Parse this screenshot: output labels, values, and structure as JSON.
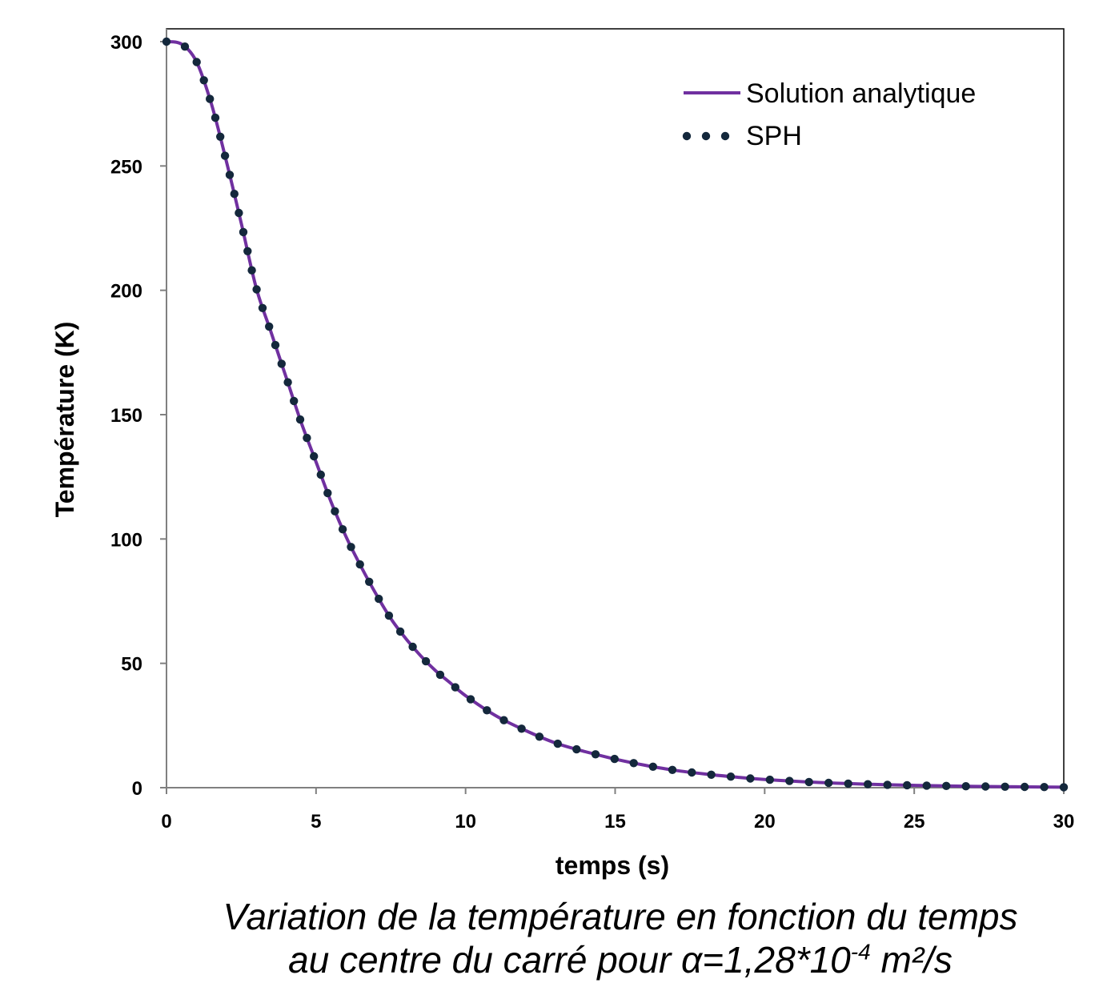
{
  "chart_data": {
    "type": "line",
    "title": "",
    "xlabel": "temps (s)",
    "ylabel": "Température (K)",
    "xlim": [
      0,
      30
    ],
    "ylim": [
      0,
      300
    ],
    "x_ticks": [
      "0",
      "5",
      "10",
      "15",
      "20",
      "25",
      "30"
    ],
    "y_ticks": [
      "0",
      "50",
      "100",
      "150",
      "200",
      "250",
      "300"
    ],
    "grid": false,
    "legend_position": "top-right",
    "colors": {
      "analytic": "#7030A0",
      "sph": "#14283C"
    },
    "series": [
      {
        "name": "Solution analytique",
        "style": "solid-line",
        "x": [
          0,
          0.5,
          1,
          1.5,
          2,
          2.5,
          3,
          3.5,
          4,
          4.5,
          5,
          5.5,
          6,
          6.5,
          7,
          7.5,
          8,
          8.5,
          9,
          9.5,
          10,
          11,
          12,
          13,
          14,
          15,
          16,
          17,
          18,
          19,
          20,
          22,
          24,
          26,
          28,
          30
        ],
        "y": [
          300,
          299,
          292,
          275,
          252,
          227,
          201,
          183,
          165,
          147,
          131,
          115,
          101,
          89,
          78,
          68,
          60,
          53,
          47,
          42,
          37,
          29,
          23,
          18,
          14.5,
          11.5,
          9,
          7,
          5.5,
          4.3,
          3.3,
          2,
          1.2,
          0.7,
          0.4,
          0.2
        ]
      },
      {
        "name": "SPH",
        "style": "dotted",
        "x": [
          0,
          0.5,
          1,
          1.5,
          2,
          2.5,
          3,
          3.5,
          4,
          4.5,
          5,
          5.5,
          6,
          6.5,
          7,
          7.5,
          8,
          8.5,
          9,
          9.5,
          10,
          11,
          12,
          13,
          14,
          15,
          16,
          17,
          18,
          19,
          20,
          22,
          24,
          26,
          28,
          30
        ],
        "y": [
          300,
          299,
          292,
          275,
          252,
          227,
          201,
          183,
          165,
          147,
          131,
          115,
          101,
          89,
          78,
          68,
          60,
          53,
          47,
          42,
          37,
          29,
          23,
          18,
          14.5,
          11.5,
          9,
          7,
          5.5,
          4.3,
          3.3,
          2,
          1.2,
          0.7,
          0.4,
          0.2
        ]
      }
    ]
  },
  "caption": {
    "line1": "Variation de la température en fonction du temps",
    "line2_prefix": "au centre du carré pour α=1,28*10",
    "line2_exponent": "-4",
    "line2_suffix": " m²/s"
  }
}
